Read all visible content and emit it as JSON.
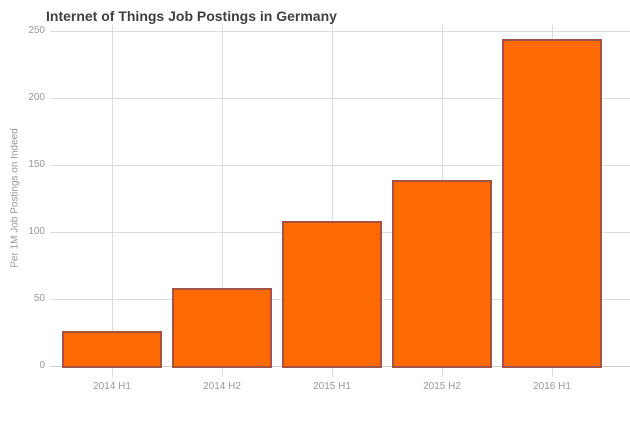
{
  "chart_data": {
    "type": "bar",
    "title": "Internet of Things Job Postings in Germany",
    "ylabel": "Per 1M Job Postings on Indeed",
    "xlabel": "",
    "categories": [
      "2014 H1",
      "2014 H2",
      "2015 H1",
      "2015 H2",
      "2016 H1"
    ],
    "values": [
      26,
      58,
      108,
      139,
      244
    ],
    "ylim": [
      0,
      250
    ],
    "yticks": [
      0,
      50,
      100,
      150,
      200,
      250
    ],
    "grid": true,
    "legend": false,
    "colors": {
      "background": "#FFFFFF",
      "bar_fill": "#FD6903",
      "bar_border": "#5D3E7D8C",
      "grid": "#DEDEDE",
      "axis": "#D2D2D2",
      "tick_label": "#999999",
      "title": "#404040",
      "axis_title": "#999999"
    }
  }
}
